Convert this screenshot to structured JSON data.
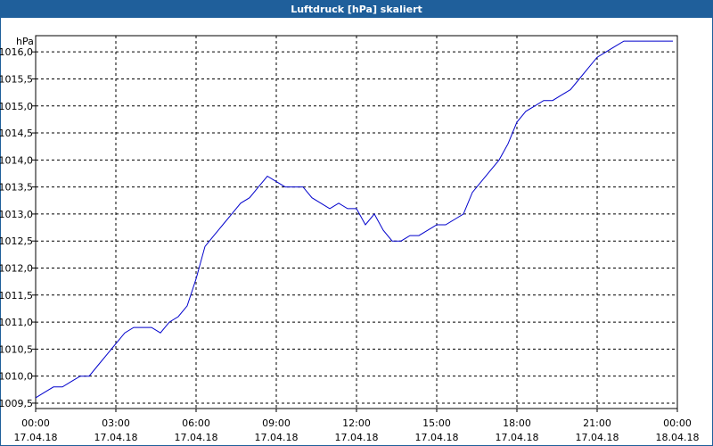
{
  "window": {
    "title": "Luftdruck [hPa] skaliert"
  },
  "colors": {
    "titlebar": "#1f5f9b",
    "line": "#0000cc",
    "grid": "#000000"
  },
  "chart_data": {
    "type": "line",
    "title": "Luftdruck [hPa] skaliert",
    "ylabel": "hPa",
    "xlabel": "",
    "grid": true,
    "xlim": [
      "17.04.18 00:00",
      "18.04.18 00:00"
    ],
    "ylim": [
      1009.4,
      1016.3
    ],
    "x_ticks": [
      {
        "time": "00:00",
        "date": "17.04.18"
      },
      {
        "time": "03:00",
        "date": "17.04.18"
      },
      {
        "time": "06:00",
        "date": "17.04.18"
      },
      {
        "time": "09:00",
        "date": "17.04.18"
      },
      {
        "time": "12:00",
        "date": "17.04.18"
      },
      {
        "time": "15:00",
        "date": "17.04.18"
      },
      {
        "time": "18:00",
        "date": "17.04.18"
      },
      {
        "time": "21:00",
        "date": "17.04.18"
      },
      {
        "time": "00:00",
        "date": "18.04.18"
      }
    ],
    "y_ticks": [
      "1009,5",
      "1010,0",
      "1010,5",
      "1011,0",
      "1011,5",
      "1012,0",
      "1012,5",
      "1013,0",
      "1013,5",
      "1014,0",
      "1014,5",
      "1015,0",
      "1015,5",
      "1016,0"
    ],
    "y_tick_values": [
      1009.5,
      1010.0,
      1010.5,
      1011.0,
      1011.5,
      1012.0,
      1012.5,
      1013.0,
      1013.5,
      1014.0,
      1014.5,
      1015.0,
      1015.5,
      1016.0
    ],
    "series": [
      {
        "x": [
          "17.04.18 00:00",
          "17.04.18 00:20",
          "17.04.18 00:40",
          "17.04.18 01:00",
          "17.04.18 01:20",
          "17.04.18 01:40",
          "17.04.18 02:00",
          "17.04.18 02:20",
          "17.04.18 02:40",
          "17.04.18 03:00",
          "17.04.18 03:20",
          "17.04.18 03:40",
          "17.04.18 04:00",
          "17.04.18 04:20",
          "17.04.18 04:40",
          "17.04.18 05:00",
          "17.04.18 05:20",
          "17.04.18 05:40",
          "17.04.18 06:00",
          "17.04.18 06:20",
          "17.04.18 06:40",
          "17.04.18 07:00",
          "17.04.18 07:20",
          "17.04.18 07:40",
          "17.04.18 08:00",
          "17.04.18 08:20",
          "17.04.18 08:40",
          "17.04.18 09:00",
          "17.04.18 09:20",
          "17.04.18 09:40",
          "17.04.18 10:00",
          "17.04.18 10:20",
          "17.04.18 10:40",
          "17.04.18 11:00",
          "17.04.18 11:20",
          "17.04.18 11:40",
          "17.04.18 12:00",
          "17.04.18 12:20",
          "17.04.18 12:40",
          "17.04.18 13:00",
          "17.04.18 13:20",
          "17.04.18 13:40",
          "17.04.18 14:00",
          "17.04.18 14:20",
          "17.04.18 14:40",
          "17.04.18 15:00",
          "17.04.18 15:20",
          "17.04.18 15:40",
          "17.04.18 16:00",
          "17.04.18 16:20",
          "17.04.18 16:40",
          "17.04.18 17:00",
          "17.04.18 17:20",
          "17.04.18 17:40",
          "17.04.18 18:00",
          "17.04.18 18:20",
          "17.04.18 18:40",
          "17.04.18 19:00",
          "17.04.18 19:20",
          "17.04.18 19:40",
          "17.04.18 20:00",
          "17.04.18 20:20",
          "17.04.18 20:40",
          "17.04.18 21:00",
          "17.04.18 21:20",
          "17.04.18 21:40",
          "17.04.18 22:00",
          "17.04.18 22:20",
          "17.04.18 22:40",
          "17.04.18 23:00",
          "17.04.18 23:20",
          "17.04.18 23:40",
          "17.04.18 23:50"
        ],
        "y": [
          1009.6,
          1009.7,
          1009.8,
          1009.8,
          1009.9,
          1010.0,
          1010.0,
          1010.2,
          1010.4,
          1010.6,
          1010.8,
          1010.9,
          1010.9,
          1010.9,
          1010.8,
          1011.0,
          1011.1,
          1011.3,
          1011.8,
          1012.4,
          1012.6,
          1012.8,
          1013.0,
          1013.2,
          1013.3,
          1013.5,
          1013.7,
          1013.6,
          1013.5,
          1013.5,
          1013.5,
          1013.3,
          1013.2,
          1013.1,
          1013.2,
          1013.1,
          1013.1,
          1012.8,
          1013.0,
          1012.7,
          1012.5,
          1012.5,
          1012.6,
          1012.6,
          1012.7,
          1012.8,
          1012.8,
          1012.9,
          1013.0,
          1013.4,
          1013.6,
          1013.8,
          1014.0,
          1014.3,
          1014.7,
          1014.9,
          1015.0,
          1015.1,
          1015.1,
          1015.2,
          1015.3,
          1015.5,
          1015.7,
          1015.9,
          1016.0,
          1016.1,
          1016.2,
          1016.2,
          1016.2,
          1016.2,
          1016.2,
          1016.2,
          1016.2
        ]
      }
    ]
  }
}
